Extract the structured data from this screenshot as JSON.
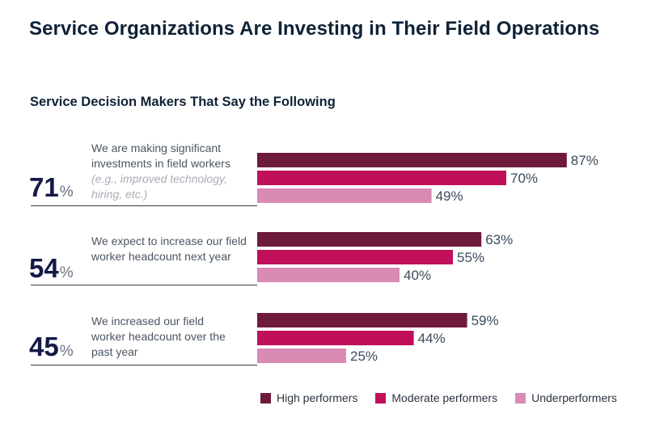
{
  "title": "Service Organizations Are Investing in Their Field Operations",
  "subtitle": "Service Decision Makers That Say the Following",
  "rows": [
    {
      "overall": "71",
      "pct_sign": "%",
      "statement": "We are making significant investments in field workers",
      "statement_note": "(e.g., improved technology, hiring, etc.)"
    },
    {
      "overall": "54",
      "pct_sign": "%",
      "statement": "We expect to increase our field worker headcount next year",
      "statement_note": ""
    },
    {
      "overall": "45",
      "pct_sign": "%",
      "statement": "We increased our field worker headcount over the past year",
      "statement_note": ""
    }
  ],
  "legend": [
    {
      "label": "High performers",
      "color": "#6e1a3d"
    },
    {
      "label": "Moderate performers",
      "color": "#c0105a"
    },
    {
      "label": "Underperformers",
      "color": "#d98bb4"
    }
  ],
  "chart_data": {
    "type": "bar",
    "orientation": "horizontal",
    "categories": [
      "We are making significant investments in field workers (e.g., improved technology, hiring, etc.)",
      "We expect to increase our field worker headcount next year",
      "We increased our field worker headcount over the past year"
    ],
    "series": [
      {
        "name": "High performers",
        "values": [
          87,
          63,
          59
        ],
        "labels": [
          "87%",
          "63%",
          "59%"
        ],
        "color": "#6e1a3d"
      },
      {
        "name": "Moderate performers",
        "values": [
          70,
          55,
          44
        ],
        "labels": [
          "70%",
          "55%",
          "44%"
        ],
        "color": "#c0105a"
      },
      {
        "name": "Underperformers",
        "values": [
          49,
          40,
          25
        ],
        "labels": [
          "49%",
          "40%",
          "25%"
        ],
        "color": "#d98bb4"
      }
    ],
    "xlim": [
      0,
      100
    ],
    "unit": "%",
    "grid": false,
    "legend_position": "bottom-right"
  }
}
